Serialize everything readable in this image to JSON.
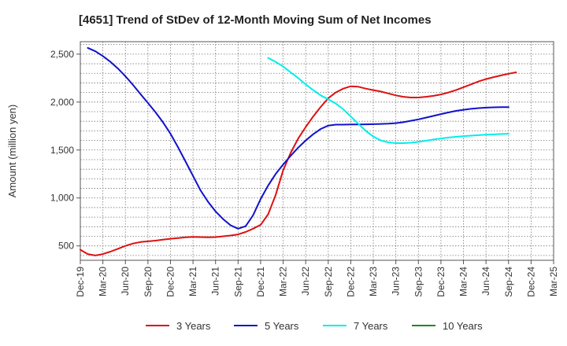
{
  "chart_data": {
    "type": "line",
    "title": "[4651]  Trend of StDev of 12-Month Moving Sum of Net Incomes",
    "xlabel": "",
    "ylabel": "Amount (million yen)",
    "x_tick_labels": [
      "Dec-19",
      "Mar-20",
      "Jun-20",
      "Sep-20",
      "Dec-20",
      "Mar-21",
      "Jun-21",
      "Sep-21",
      "Dec-21",
      "Mar-22",
      "Jun-22",
      "Sep-22",
      "Dec-22",
      "Mar-23",
      "Jun-23",
      "Sep-23",
      "Dec-23",
      "Mar-24",
      "Jun-24",
      "Sep-24",
      "Dec-24",
      "Mar-25"
    ],
    "y_ticks": [
      500,
      1000,
      1500,
      2000,
      2500
    ],
    "y_tick_labels": [
      "500",
      "1,000",
      "1,500",
      "2,000",
      "2,500"
    ],
    "ylim": [
      350,
      2630
    ],
    "grid": true,
    "legend_position": "bottom",
    "series": [
      {
        "name": "3 Years",
        "color": "#dd1111",
        "start_index": 0,
        "values": [
          460,
          415,
          400,
          415,
          440,
          470,
          500,
          525,
          540,
          548,
          555,
          565,
          575,
          582,
          590,
          594,
          592,
          590,
          592,
          600,
          608,
          620,
          645,
          680,
          720,
          830,
          1030,
          1290,
          1470,
          1620,
          1740,
          1850,
          1950,
          2040,
          2100,
          2140,
          2165,
          2160,
          2140,
          2125,
          2110,
          2090,
          2070,
          2055,
          2048,
          2048,
          2055,
          2065,
          2080,
          2100,
          2125,
          2155,
          2185,
          2215,
          2240,
          2260,
          2278,
          2295,
          2310
        ]
      },
      {
        "name": "5 Years",
        "color": "#1111cc",
        "start_index": 1,
        "values": [
          2565,
          2530,
          2480,
          2420,
          2350,
          2270,
          2180,
          2085,
          1990,
          1895,
          1790,
          1670,
          1530,
          1380,
          1230,
          1080,
          960,
          860,
          780,
          715,
          680,
          705,
          820,
          990,
          1130,
          1250,
          1350,
          1440,
          1525,
          1600,
          1665,
          1720,
          1755,
          1765,
          1765,
          1766,
          1766,
          1768,
          1770,
          1772,
          1775,
          1780,
          1790,
          1805,
          1820,
          1838,
          1856,
          1875,
          1892,
          1908,
          1920,
          1930,
          1937,
          1942,
          1945,
          1947,
          1948
        ]
      },
      {
        "name": "7 Years",
        "color": "#00eeee",
        "start_index": 25,
        "values": [
          2460,
          2420,
          2370,
          2310,
          2250,
          2185,
          2125,
          2070,
          2030,
          1985,
          1925,
          1850,
          1775,
          1700,
          1640,
          1600,
          1580,
          1572,
          1572,
          1576,
          1585,
          1597,
          1610,
          1620,
          1630,
          1638,
          1645,
          1650,
          1655,
          1660,
          1663,
          1667,
          1670
        ]
      },
      {
        "name": "10 Years",
        "color": "#228822",
        "start_index": 0,
        "values": []
      }
    ]
  }
}
